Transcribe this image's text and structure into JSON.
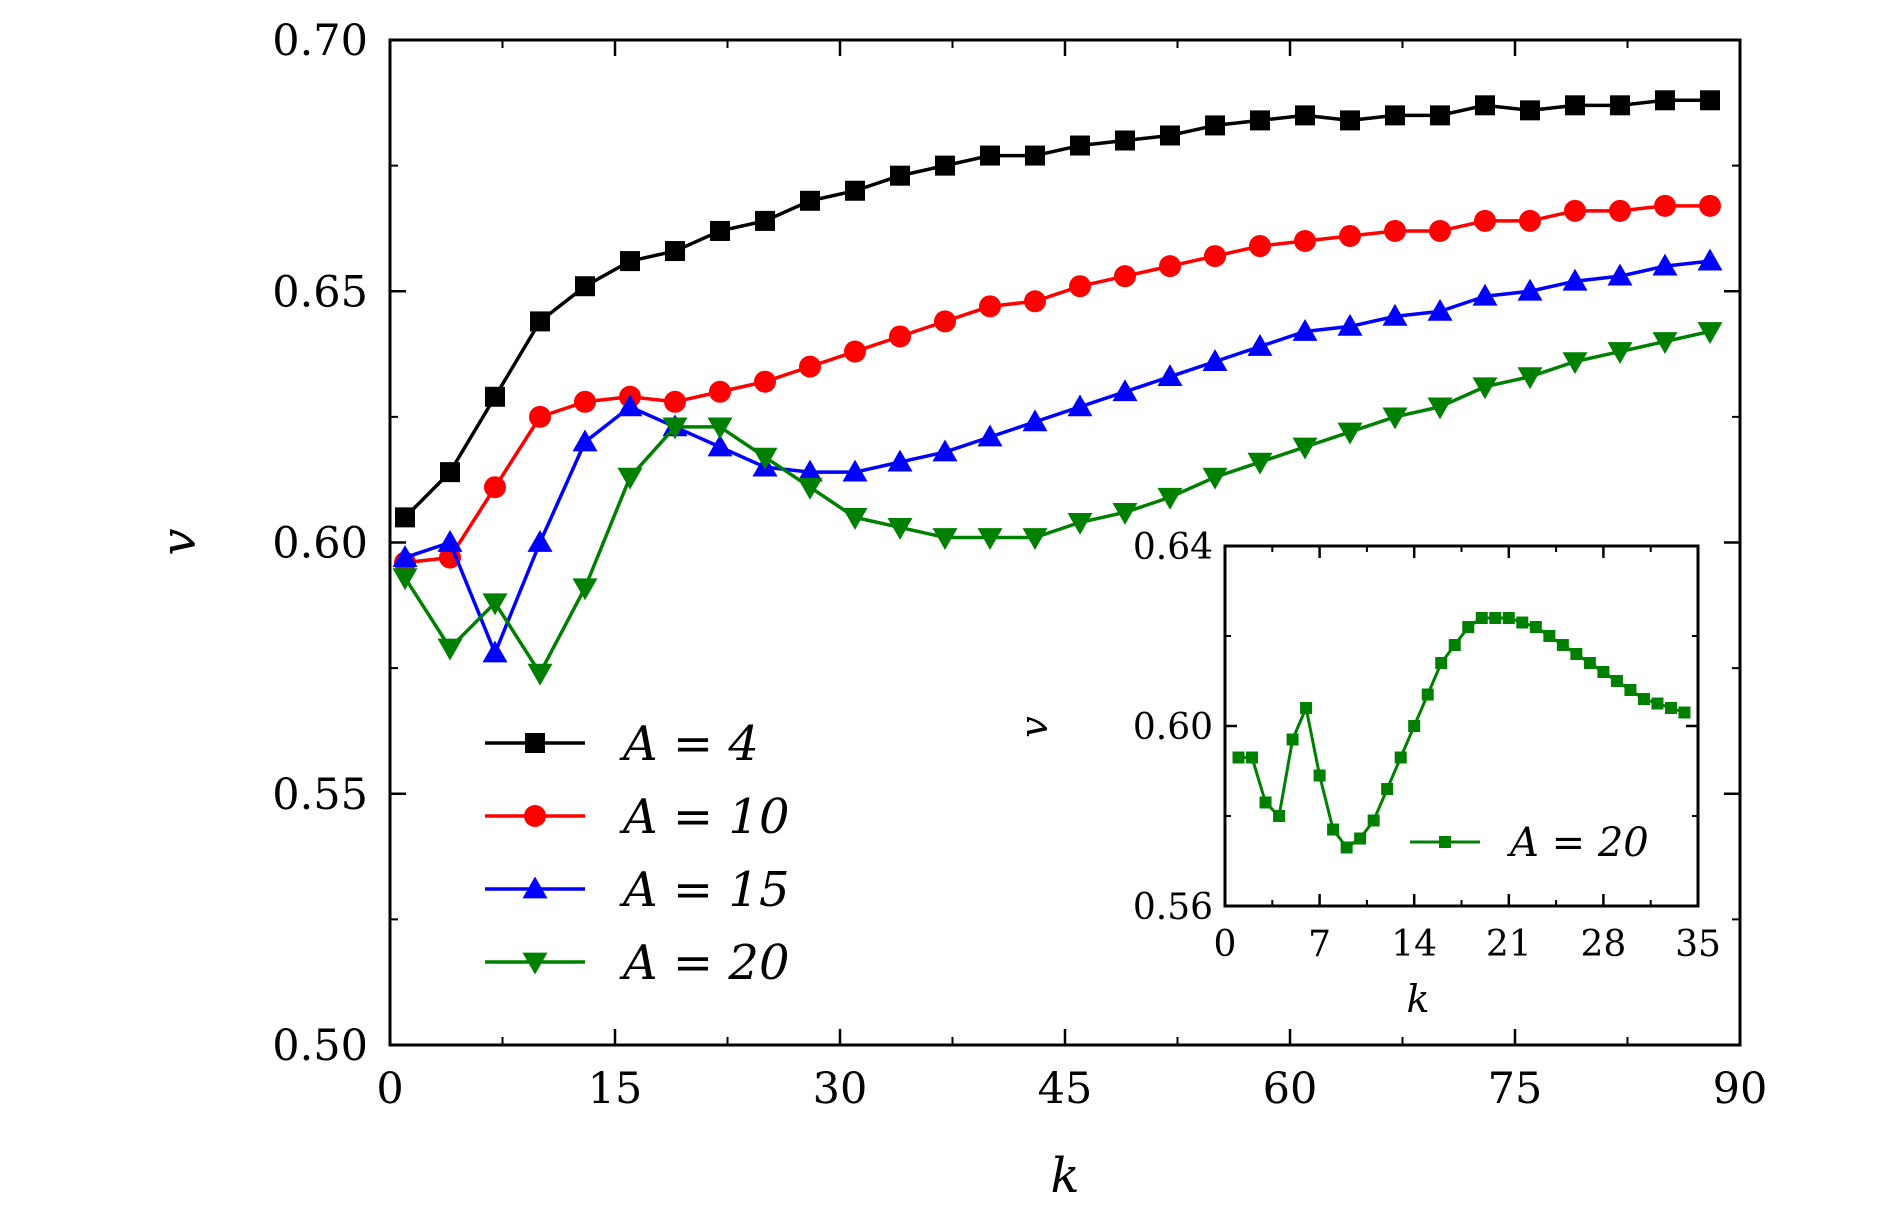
{
  "chart_data": [
    {
      "type": "line",
      "title": "",
      "xlabel": "k",
      "ylabel": "v",
      "xlim": [
        0,
        90
      ],
      "ylim": [
        0.5,
        0.7
      ],
      "xticks": [
        0,
        15,
        30,
        45,
        60,
        75,
        90
      ],
      "xtick_labels": [
        "0",
        "15",
        "30",
        "45",
        "60",
        "75",
        "90"
      ],
      "yticks": [
        0.5,
        0.55,
        0.6,
        0.65,
        0.7
      ],
      "ytick_labels": [
        "0.50",
        "0.55",
        "0.60",
        "0.65",
        "0.70"
      ],
      "legend_position": "lower-left",
      "series": [
        {
          "name": "A = 4",
          "legend_prefix": "A",
          "legend_value": "= 4",
          "color": "#000000",
          "marker": "square",
          "x": [
            1,
            4,
            7,
            10,
            13,
            16,
            19,
            22,
            25,
            28,
            31,
            34,
            37,
            40,
            43,
            46,
            49,
            52,
            55,
            58,
            61,
            64,
            67,
            70,
            73,
            76,
            79,
            82,
            85,
            88
          ],
          "values": [
            0.605,
            0.614,
            0.629,
            0.644,
            0.651,
            0.656,
            0.658,
            0.662,
            0.664,
            0.668,
            0.67,
            0.673,
            0.675,
            0.677,
            0.677,
            0.679,
            0.68,
            0.681,
            0.683,
            0.684,
            0.685,
            0.684,
            0.685,
            0.685,
            0.687,
            0.686,
            0.687,
            0.687,
            0.688,
            0.688
          ]
        },
        {
          "name": "A = 10",
          "legend_prefix": "A",
          "legend_value": "= 10",
          "color": "#ff0000",
          "marker": "circle",
          "x": [
            1,
            4,
            7,
            10,
            13,
            16,
            19,
            22,
            25,
            28,
            31,
            34,
            37,
            40,
            43,
            46,
            49,
            52,
            55,
            58,
            61,
            64,
            67,
            70,
            73,
            76,
            79,
            82,
            85,
            88
          ],
          "values": [
            0.596,
            0.597,
            0.611,
            0.625,
            0.628,
            0.629,
            0.628,
            0.63,
            0.632,
            0.635,
            0.638,
            0.641,
            0.644,
            0.647,
            0.648,
            0.651,
            0.653,
            0.655,
            0.657,
            0.659,
            0.66,
            0.661,
            0.662,
            0.662,
            0.664,
            0.664,
            0.666,
            0.666,
            0.667,
            0.667
          ]
        },
        {
          "name": "A = 15",
          "legend_prefix": "A",
          "legend_value": "= 15",
          "color": "#0000ff",
          "marker": "triangle-up",
          "x": [
            1,
            4,
            7,
            10,
            13,
            16,
            19,
            22,
            25,
            28,
            31,
            34,
            37,
            40,
            43,
            46,
            49,
            52,
            55,
            58,
            61,
            64,
            67,
            70,
            73,
            76,
            79,
            82,
            85,
            88
          ],
          "values": [
            0.597,
            0.6,
            0.578,
            0.6,
            0.62,
            0.627,
            0.623,
            0.619,
            0.615,
            0.614,
            0.614,
            0.616,
            0.618,
            0.621,
            0.624,
            0.627,
            0.63,
            0.633,
            0.636,
            0.639,
            0.642,
            0.643,
            0.645,
            0.646,
            0.649,
            0.65,
            0.652,
            0.653,
            0.655,
            0.656
          ]
        },
        {
          "name": "A = 20",
          "legend_prefix": "A",
          "legend_value": "= 20",
          "color": "#008000",
          "marker": "triangle-down",
          "x": [
            1,
            4,
            7,
            10,
            13,
            16,
            19,
            22,
            25,
            28,
            31,
            34,
            37,
            40,
            43,
            46,
            49,
            52,
            55,
            58,
            61,
            64,
            67,
            70,
            73,
            76,
            79,
            82,
            85,
            88
          ],
          "values": [
            0.593,
            0.579,
            0.588,
            0.574,
            0.591,
            0.613,
            0.623,
            0.623,
            0.617,
            0.611,
            0.605,
            0.603,
            0.601,
            0.601,
            0.601,
            0.604,
            0.606,
            0.609,
            0.613,
            0.616,
            0.619,
            0.622,
            0.625,
            0.627,
            0.631,
            0.633,
            0.636,
            0.638,
            0.64,
            0.642
          ]
        }
      ]
    },
    {
      "type": "line",
      "title": "",
      "xlabel": "k",
      "ylabel": "v",
      "xlim": [
        0,
        35
      ],
      "ylim": [
        0.56,
        0.64
      ],
      "xticks": [
        0,
        7,
        14,
        21,
        28,
        35
      ],
      "xtick_labels": [
        "0",
        "7",
        "14",
        "21",
        "28",
        "35"
      ],
      "yticks": [
        0.56,
        0.6,
        0.64
      ],
      "ytick_labels": [
        "0.56",
        "0.60",
        "0.64"
      ],
      "legend_position": "lower-right",
      "series": [
        {
          "name": "A = 20",
          "legend_prefix": "A",
          "legend_value": "= 20",
          "color": "#008000",
          "marker": "small-square",
          "x": [
            1,
            2,
            3,
            4,
            5,
            6,
            7,
            8,
            9,
            10,
            11,
            12,
            13,
            14,
            15,
            16,
            17,
            18,
            19,
            20,
            21,
            22,
            23,
            24,
            25,
            26,
            27,
            28,
            29,
            30,
            31,
            32,
            33,
            34
          ],
          "values": [
            0.593,
            0.593,
            0.583,
            0.58,
            0.597,
            0.604,
            0.589,
            0.577,
            0.573,
            0.575,
            0.579,
            0.586,
            0.593,
            0.6,
            0.607,
            0.614,
            0.618,
            0.622,
            0.624,
            0.624,
            0.624,
            0.623,
            0.622,
            0.62,
            0.618,
            0.616,
            0.614,
            0.612,
            0.61,
            0.608,
            0.606,
            0.605,
            0.604,
            0.603
          ]
        }
      ]
    }
  ]
}
